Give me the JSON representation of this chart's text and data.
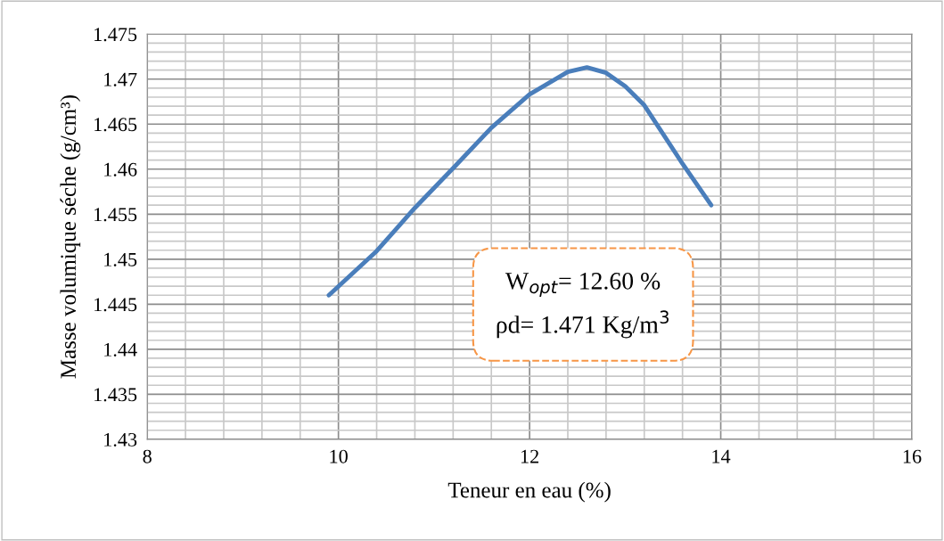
{
  "chart_data": {
    "type": "line",
    "xlabel": "Teneur en eau (%)",
    "ylabel": "Masse volumique séche (g/cm³)",
    "x": [
      9.9,
      10.4,
      10.8,
      11.2,
      11.6,
      12.0,
      12.4,
      12.6,
      12.8,
      13.0,
      13.2,
      13.6,
      13.9
    ],
    "series": [
      {
        "color": "#4a7ebb",
        "values": [
          1.446,
          1.4509,
          1.4557,
          1.4601,
          1.4646,
          1.4683,
          1.4708,
          1.4713,
          1.4707,
          1.4692,
          1.4671,
          1.4606,
          1.456
        ]
      }
    ],
    "xlim": [
      8,
      16
    ],
    "xticks": [
      8,
      10,
      12,
      14,
      16
    ],
    "ylim": [
      1.43,
      1.475
    ],
    "yticks": [
      {
        "value": 1.43,
        "label": "1.43"
      },
      {
        "value": 1.435,
        "label": "1.435"
      },
      {
        "value": 1.44,
        "label": "1.44"
      },
      {
        "value": 1.445,
        "label": "1.445"
      },
      {
        "value": 1.45,
        "label": "1.45"
      },
      {
        "value": 1.455,
        "label": "1.455"
      },
      {
        "value": 1.46,
        "label": "1.46"
      },
      {
        "value": 1.465,
        "label": "1.465"
      },
      {
        "value": 1.47,
        "label": "1.47"
      },
      {
        "value": 1.475,
        "label": "1.475"
      }
    ],
    "grid": true,
    "marker": "none",
    "line_style": "solid",
    "annotations": [
      "W$_{opt}$= 12.60 %\nρd= 1.471 Kg/m$^{3}$"
    ]
  }
}
